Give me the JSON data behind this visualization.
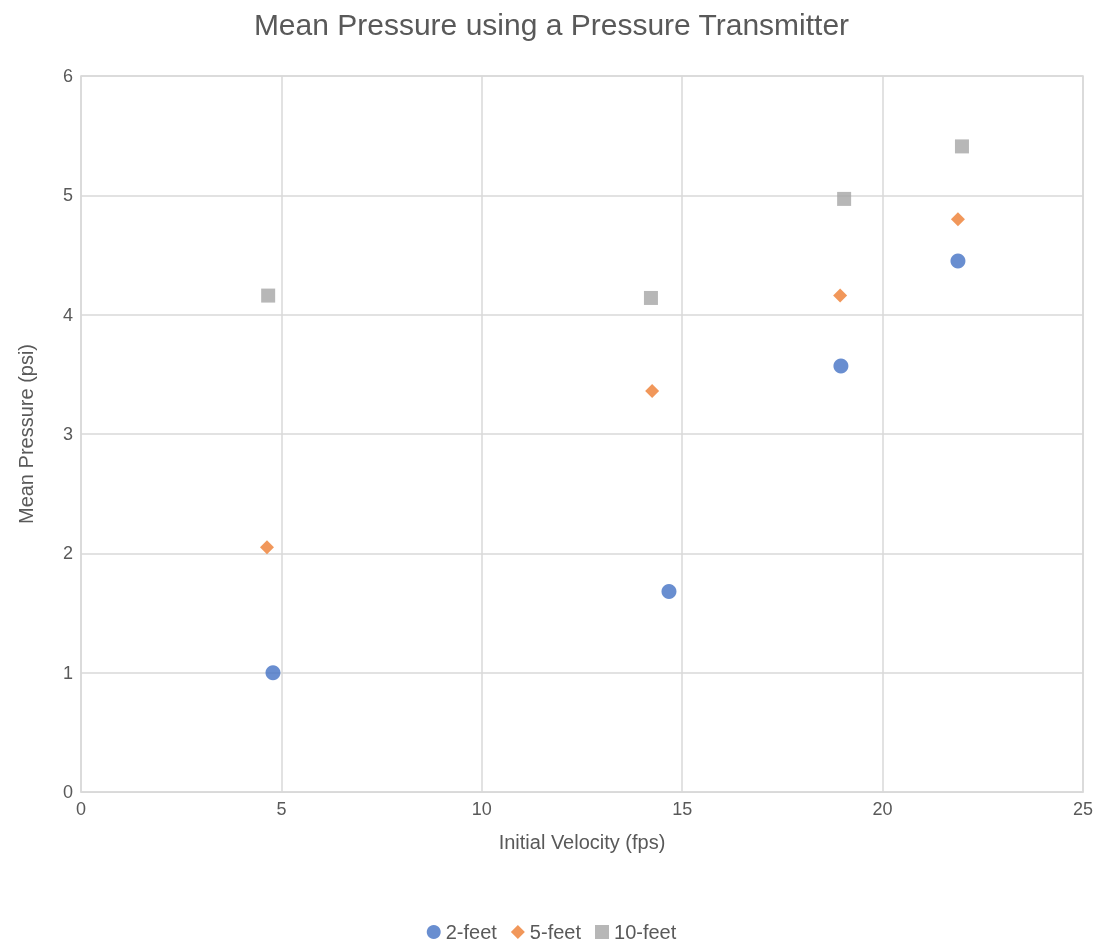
{
  "chart_data": {
    "type": "scatter",
    "title": "Mean Pressure using a Pressure Transmitter",
    "xlabel": "Initial Velocity (fps)",
    "ylabel": "Mean Pressure (psi)",
    "xlim": [
      0,
      25
    ],
    "xticks": [
      0,
      5,
      10,
      15,
      20,
      25
    ],
    "ylim": [
      0,
      6
    ],
    "yticks": [
      0,
      1,
      2,
      3,
      4,
      5,
      6
    ],
    "grid": true,
    "legend": "bottom",
    "series": [
      {
        "name": "2-feet",
        "color": "#4472c4",
        "marker": "circle",
        "x": [
          4.79,
          14.67,
          18.96,
          21.88
        ],
        "values": [
          1.0,
          1.68,
          3.57,
          4.45
        ]
      },
      {
        "name": "5-feet",
        "color": "#ed7d31",
        "marker": "diamond",
        "x": [
          4.64,
          14.25,
          18.94,
          21.88
        ],
        "values": [
          2.05,
          3.36,
          4.16,
          4.8
        ]
      },
      {
        "name": "10-feet",
        "color": "#a5a5a5",
        "marker": "square",
        "x": [
          4.67,
          14.22,
          19.04,
          21.98
        ],
        "values": [
          4.16,
          4.14,
          4.97,
          5.41
        ]
      }
    ]
  }
}
